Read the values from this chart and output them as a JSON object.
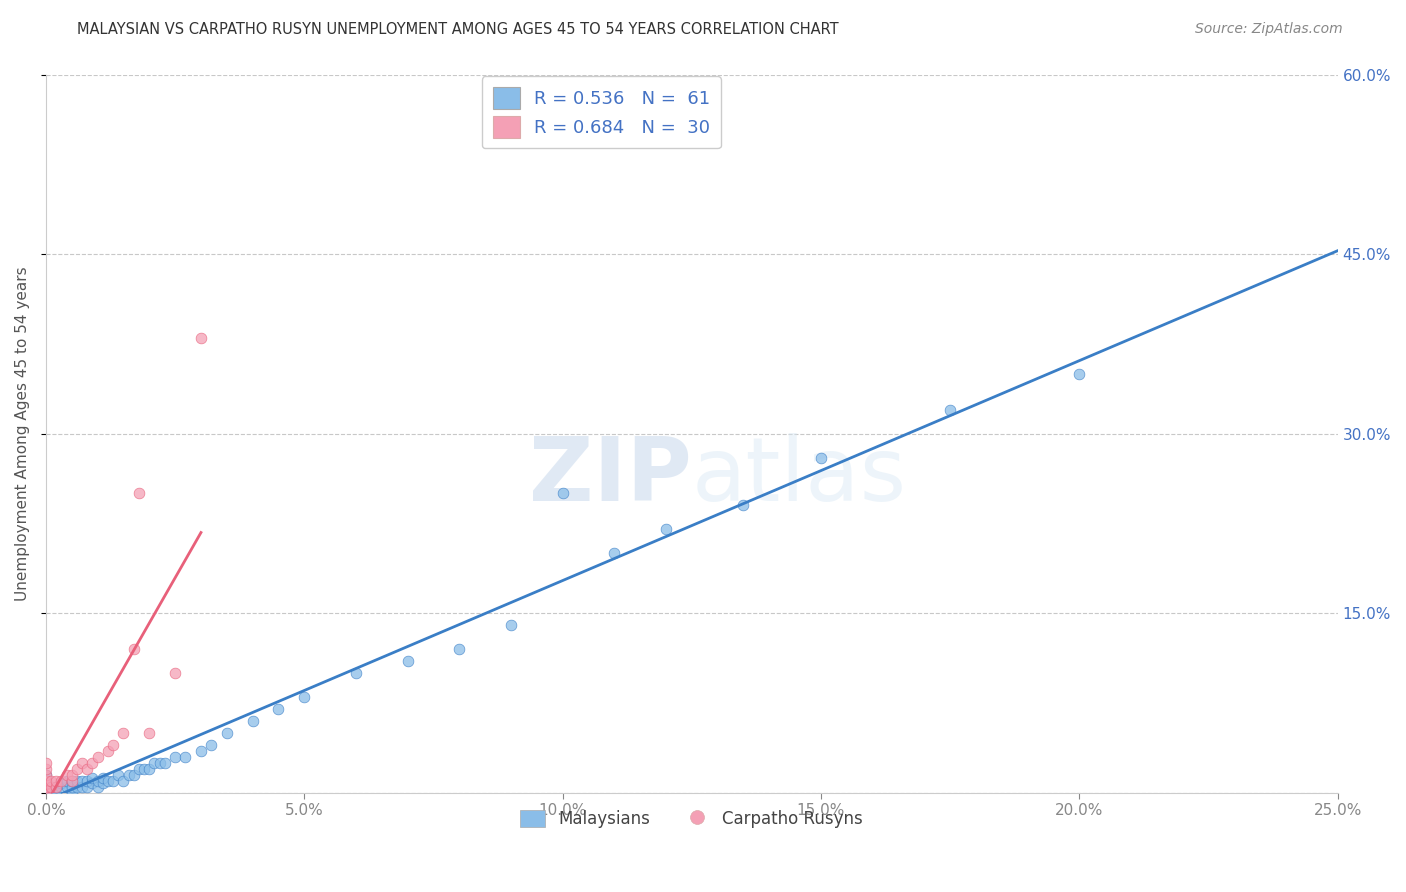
{
  "title": "MALAYSIAN VS CARPATHO RUSYN UNEMPLOYMENT AMONG AGES 45 TO 54 YEARS CORRELATION CHART",
  "source": "Source: ZipAtlas.com",
  "ylabel": "Unemployment Among Ages 45 to 54 years",
  "xlim": [
    0.0,
    0.25
  ],
  "ylim": [
    0.0,
    0.6
  ],
  "xticks": [
    0.0,
    0.05,
    0.1,
    0.15,
    0.2,
    0.25
  ],
  "xticklabels": [
    "0.0%",
    "5.0%",
    "10.0%",
    "15.0%",
    "20.0%",
    "25.0%"
  ],
  "yticks": [
    0.0,
    0.15,
    0.3,
    0.45,
    0.6
  ],
  "yticklabels": [
    "",
    "15.0%",
    "30.0%",
    "45.0%",
    "60.0%"
  ],
  "R_malaysian": 0.536,
  "N_malaysian": 61,
  "R_rusyn": 0.684,
  "N_rusyn": 30,
  "color_malaysian": "#8abde8",
  "color_rusyn": "#f4a0b5",
  "color_line_malaysian": "#3a7ec6",
  "color_line_rusyn": "#e8607a",
  "color_axis_text": "#4472C4",
  "watermark_zip": "ZIP",
  "watermark_atlas": "atlas",
  "background_color": "#ffffff",
  "grid_color": "#c8c8c8",
  "malaysian_x": [
    0.0,
    0.0,
    0.0,
    0.0,
    0.0,
    0.0,
    0.0,
    0.001,
    0.001,
    0.002,
    0.002,
    0.003,
    0.003,
    0.004,
    0.004,
    0.005,
    0.005,
    0.005,
    0.006,
    0.006,
    0.007,
    0.007,
    0.008,
    0.008,
    0.009,
    0.009,
    0.01,
    0.01,
    0.011,
    0.011,
    0.012,
    0.013,
    0.014,
    0.015,
    0.016,
    0.017,
    0.018,
    0.019,
    0.02,
    0.021,
    0.022,
    0.023,
    0.025,
    0.027,
    0.03,
    0.032,
    0.035,
    0.04,
    0.045,
    0.05,
    0.06,
    0.07,
    0.08,
    0.09,
    0.1,
    0.11,
    0.12,
    0.135,
    0.15,
    0.175,
    0.2
  ],
  "malaysian_y": [
    0.0,
    0.0,
    0.005,
    0.005,
    0.01,
    0.01,
    0.015,
    0.0,
    0.005,
    0.0,
    0.005,
    0.005,
    0.008,
    0.005,
    0.01,
    0.0,
    0.005,
    0.01,
    0.005,
    0.01,
    0.005,
    0.01,
    0.005,
    0.01,
    0.008,
    0.012,
    0.005,
    0.01,
    0.008,
    0.012,
    0.01,
    0.01,
    0.015,
    0.01,
    0.015,
    0.015,
    0.02,
    0.02,
    0.02,
    0.025,
    0.025,
    0.025,
    0.03,
    0.03,
    0.035,
    0.04,
    0.05,
    0.06,
    0.07,
    0.08,
    0.1,
    0.11,
    0.12,
    0.14,
    0.25,
    0.2,
    0.22,
    0.24,
    0.28,
    0.32,
    0.35
  ],
  "rusyn_x": [
    0.0,
    0.0,
    0.0,
    0.0,
    0.0,
    0.0,
    0.0,
    0.0,
    0.0,
    0.001,
    0.001,
    0.002,
    0.002,
    0.003,
    0.004,
    0.005,
    0.005,
    0.006,
    0.007,
    0.008,
    0.009,
    0.01,
    0.012,
    0.013,
    0.015,
    0.017,
    0.018,
    0.02,
    0.025,
    0.03
  ],
  "rusyn_y": [
    0.0,
    0.005,
    0.007,
    0.008,
    0.01,
    0.01,
    0.015,
    0.02,
    0.025,
    0.005,
    0.01,
    0.005,
    0.01,
    0.01,
    0.015,
    0.01,
    0.015,
    0.02,
    0.025,
    0.02,
    0.025,
    0.03,
    0.035,
    0.04,
    0.05,
    0.12,
    0.25,
    0.05,
    0.1,
    0.38
  ]
}
